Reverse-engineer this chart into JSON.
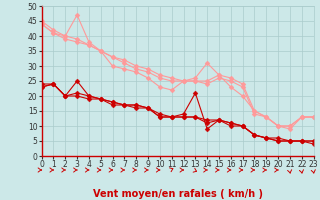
{
  "xlabel": "Vent moyen/en rafales ( km/h )",
  "bg_color": "#cce8e8",
  "grid_color": "#aacccc",
  "xmin": 0,
  "xmax": 23,
  "ymin": 0,
  "ymax": 50,
  "yticks": [
    0,
    5,
    10,
    15,
    20,
    25,
    30,
    35,
    40,
    45,
    50
  ],
  "xticks": [
    0,
    1,
    2,
    3,
    4,
    5,
    6,
    7,
    8,
    9,
    10,
    11,
    12,
    13,
    14,
    15,
    16,
    17,
    18,
    19,
    20,
    21,
    22,
    23
  ],
  "lines_light": [
    {
      "x": [
        0,
        1,
        2,
        3,
        4,
        5,
        6,
        7,
        8,
        9,
        10,
        11,
        12,
        13,
        14,
        15,
        16,
        17,
        18,
        19,
        20,
        21,
        22,
        23
      ],
      "y": [
        45,
        42,
        40,
        47,
        38,
        35,
        30,
        29,
        28,
        26,
        23,
        22,
        25,
        26,
        31,
        27,
        23,
        20,
        15,
        13,
        10,
        10,
        13,
        13
      ]
    },
    {
      "x": [
        0,
        1,
        2,
        3,
        4,
        5,
        6,
        7,
        8,
        9,
        10,
        11,
        12,
        13,
        14,
        15,
        16,
        17,
        18,
        19,
        20,
        21,
        22,
        23
      ],
      "y": [
        44,
        41,
        40,
        39,
        37,
        35,
        33,
        32,
        30,
        29,
        27,
        26,
        25,
        25,
        25,
        27,
        26,
        24,
        15,
        13,
        10,
        10,
        13,
        13
      ]
    },
    {
      "x": [
        0,
        1,
        2,
        3,
        4,
        5,
        6,
        7,
        8,
        9,
        10,
        11,
        12,
        13,
        14,
        15,
        16,
        17,
        18,
        19,
        20,
        21,
        22,
        23
      ],
      "y": [
        44,
        41,
        39,
        38,
        37,
        35,
        33,
        31,
        29,
        28,
        26,
        25,
        25,
        25,
        24,
        26,
        25,
        23,
        14,
        13,
        10,
        9,
        13,
        13
      ]
    }
  ],
  "lines_dark": [
    {
      "x": [
        0,
        1,
        2,
        3,
        4,
        5,
        6,
        7,
        8,
        9,
        10,
        11,
        12,
        13,
        14,
        15,
        16,
        17,
        18,
        19,
        20,
        21,
        22,
        23
      ],
      "y": [
        24,
        24,
        20,
        25,
        20,
        19,
        18,
        17,
        17,
        16,
        13,
        13,
        14,
        21,
        9,
        12,
        11,
        10,
        7,
        6,
        6,
        5,
        5,
        5
      ]
    },
    {
      "x": [
        0,
        1,
        2,
        3,
        4,
        5,
        6,
        7,
        8,
        9,
        10,
        11,
        12,
        13,
        14,
        15,
        16,
        17,
        18,
        19,
        20,
        21,
        22,
        23
      ],
      "y": [
        23,
        24,
        20,
        21,
        20,
        19,
        18,
        17,
        17,
        16,
        14,
        13,
        13,
        13,
        12,
        12,
        11,
        10,
        7,
        6,
        5,
        5,
        5,
        5
      ]
    },
    {
      "x": [
        0,
        1,
        2,
        3,
        4,
        5,
        6,
        7,
        8,
        9,
        10,
        11,
        12,
        13,
        14,
        15,
        16,
        17,
        18,
        19,
        20,
        21,
        22,
        23
      ],
      "y": [
        23,
        24,
        20,
        20,
        19,
        19,
        17,
        17,
        16,
        16,
        13,
        13,
        13,
        13,
        11,
        12,
        10,
        10,
        7,
        6,
        5,
        5,
        5,
        4
      ]
    }
  ],
  "light_color": "#ff9999",
  "dark_color": "#cc0000",
  "marker": "D",
  "marker_size": 2.5,
  "linewidth": 0.8,
  "xlabel_fontsize": 7,
  "tick_fontsize": 5.5,
  "arrow_directions": [
    0,
    0,
    0,
    0,
    0,
    0,
    0,
    0,
    0,
    0,
    0,
    1,
    0,
    2,
    0,
    0,
    0,
    0,
    0,
    0,
    0,
    3,
    3,
    3
  ],
  "bottom_spine_color": "#cc0000",
  "left_spine_color": "#cc0000"
}
